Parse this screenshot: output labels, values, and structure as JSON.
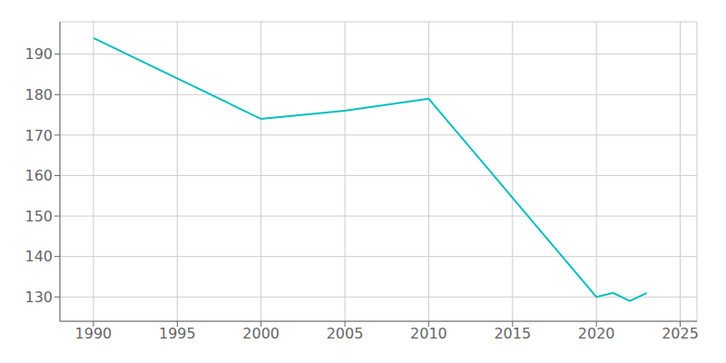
{
  "chart_data": {
    "type": "line",
    "x": [
      1990,
      2000,
      2005,
      2010,
      2020,
      2021,
      2022,
      2023
    ],
    "values": [
      194,
      174,
      176,
      179,
      130,
      131,
      129,
      131
    ],
    "color": "#00BFBF",
    "xlim": [
      1988,
      2026
    ],
    "ylim": [
      124,
      198
    ],
    "xticks": [
      1990,
      1995,
      2000,
      2005,
      2010,
      2015,
      2020,
      2025
    ],
    "yticks": [
      130,
      140,
      150,
      160,
      170,
      180,
      190
    ],
    "grid": true
  }
}
